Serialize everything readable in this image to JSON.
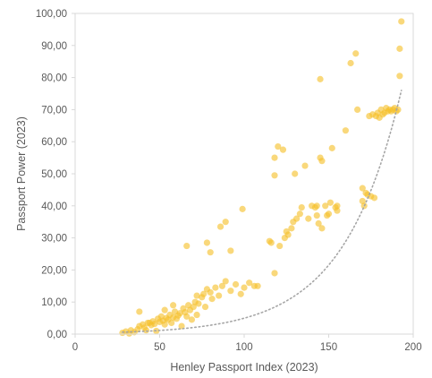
{
  "chart_data": {
    "type": "scatter",
    "title": "",
    "xlabel": "Henley Passport Index (2023)",
    "ylabel": "Passport Power (2023)",
    "xlim": [
      0,
      200
    ],
    "ylim": [
      0,
      100
    ],
    "x_ticks": [
      {
        "value": 0,
        "label": "0"
      },
      {
        "value": 50,
        "label": "50"
      },
      {
        "value": 100,
        "label": "100"
      },
      {
        "value": 150,
        "label": "150"
      },
      {
        "value": 200,
        "label": "200"
      }
    ],
    "y_ticks": [
      {
        "value": 0,
        "label": "0,00"
      },
      {
        "value": 10,
        "label": "10,00"
      },
      {
        "value": 20,
        "label": "20,00"
      },
      {
        "value": 30,
        "label": "30,00"
      },
      {
        "value": 40,
        "label": "40,00"
      },
      {
        "value": 50,
        "label": "50,00"
      },
      {
        "value": 60,
        "label": "60,00"
      },
      {
        "value": 70,
        "label": "70,00"
      },
      {
        "value": 80,
        "label": "80,00"
      },
      {
        "value": 90,
        "label": "90,00"
      },
      {
        "value": 100,
        "label": "100,00"
      }
    ],
    "grid": false,
    "legend": "none",
    "point_color": "#F5C02A",
    "trendline": {
      "type": "exponential",
      "style": "dotted",
      "color": "#A6A6A6",
      "x": [
        28,
        193
      ],
      "y": [
        0.6,
        76
      ]
    },
    "series": [
      {
        "points": [
          [
            28,
            0.4
          ],
          [
            30,
            0.8
          ],
          [
            32,
            0.2
          ],
          [
            33,
            1.2
          ],
          [
            35,
            0.6
          ],
          [
            37,
            1.5
          ],
          [
            38,
            2.5
          ],
          [
            40,
            3.0
          ],
          [
            41,
            2.0
          ],
          [
            42,
            1.2
          ],
          [
            43,
            3.5
          ],
          [
            45,
            2.8
          ],
          [
            46,
            4.0
          ],
          [
            47,
            3.2
          ],
          [
            48,
            1.0
          ],
          [
            49,
            4.8
          ],
          [
            50,
            3.8
          ],
          [
            51,
            5.5
          ],
          [
            52,
            4.2
          ],
          [
            53,
            3.0
          ],
          [
            54,
            5.0
          ],
          [
            55,
            4.5
          ],
          [
            56,
            6.0
          ],
          [
            57,
            3.5
          ],
          [
            58,
            5.2
          ],
          [
            59,
            7.0
          ],
          [
            60,
            4.8
          ],
          [
            61,
            5.8
          ],
          [
            62,
            6.5
          ],
          [
            63,
            2.5
          ],
          [
            64,
            8.0
          ],
          [
            65,
            6.8
          ],
          [
            66,
            5.5
          ],
          [
            67,
            9.0
          ],
          [
            68,
            7.5
          ],
          [
            69,
            4.5
          ],
          [
            70,
            8.5
          ],
          [
            71,
            10.0
          ],
          [
            72,
            6.0
          ],
          [
            73,
            9.5
          ],
          [
            75,
            11.5
          ],
          [
            76,
            12.5
          ],
          [
            77,
            8.5
          ],
          [
            78,
            14.0
          ],
          [
            80,
            13.0
          ],
          [
            81,
            11.0
          ],
          [
            83,
            14.5
          ],
          [
            85,
            12.0
          ],
          [
            87,
            15.0
          ],
          [
            89,
            16.5
          ],
          [
            92,
            13.5
          ],
          [
            95,
            15.5
          ],
          [
            98,
            12.5
          ],
          [
            100,
            14.5
          ],
          [
            103,
            16.0
          ],
          [
            106,
            15.0
          ],
          [
            108,
            15.0
          ],
          [
            118,
            19.0
          ],
          [
            38,
            7.0
          ],
          [
            44,
            3.5
          ],
          [
            53,
            7.5
          ],
          [
            58,
            9.0
          ],
          [
            66,
            27.5
          ],
          [
            72,
            12.0
          ],
          [
            78,
            28.5
          ],
          [
            80,
            25.5
          ],
          [
            86,
            33.5
          ],
          [
            89,
            35.0
          ],
          [
            92,
            26.0
          ],
          [
            99,
            39.0
          ],
          [
            115,
            29.0
          ],
          [
            116,
            28.5
          ],
          [
            118,
            55.0
          ],
          [
            118,
            49.5
          ],
          [
            120,
            58.5
          ],
          [
            121,
            27.5
          ],
          [
            123,
            57.5
          ],
          [
            124,
            30.0
          ],
          [
            125,
            32.0
          ],
          [
            126,
            31.0
          ],
          [
            128,
            33.0
          ],
          [
            129,
            35.0
          ],
          [
            130,
            50.0
          ],
          [
            131,
            36.0
          ],
          [
            133,
            37.5
          ],
          [
            134,
            39.5
          ],
          [
            136,
            52.5
          ],
          [
            138,
            36.0
          ],
          [
            140,
            40.0
          ],
          [
            142,
            39.5
          ],
          [
            143,
            37.0
          ],
          [
            143,
            40.0
          ],
          [
            144,
            34.5
          ],
          [
            145,
            79.5
          ],
          [
            145,
            55.0
          ],
          [
            146,
            54.0
          ],
          [
            146,
            33.0
          ],
          [
            148,
            40.0
          ],
          [
            149,
            37.0
          ],
          [
            150,
            37.5
          ],
          [
            151,
            41.0
          ],
          [
            152,
            58.0
          ],
          [
            154,
            39.5
          ],
          [
            155,
            40.0
          ],
          [
            155,
            38.5
          ],
          [
            160,
            63.5
          ],
          [
            163,
            84.5
          ],
          [
            166,
            87.5
          ],
          [
            167,
            70.0
          ],
          [
            170,
            45.5
          ],
          [
            170,
            41.5
          ],
          [
            171,
            40.0
          ],
          [
            172,
            44.0
          ],
          [
            173,
            43.5
          ],
          [
            174,
            68.0
          ],
          [
            175,
            43.0
          ],
          [
            176,
            68.5
          ],
          [
            177,
            42.5
          ],
          [
            178,
            68.0
          ],
          [
            179,
            69.0
          ],
          [
            180,
            67.5
          ],
          [
            181,
            70.0
          ],
          [
            182,
            68.5
          ],
          [
            183,
            69.0
          ],
          [
            184,
            70.5
          ],
          [
            185,
            69.5
          ],
          [
            186,
            70.0
          ],
          [
            187,
            69.5
          ],
          [
            188,
            70.0
          ],
          [
            189,
            70.5
          ],
          [
            190,
            69.5
          ],
          [
            191,
            70.0
          ],
          [
            192,
            80.5
          ],
          [
            192,
            89.0
          ],
          [
            193,
            97.5
          ]
        ]
      }
    ]
  }
}
